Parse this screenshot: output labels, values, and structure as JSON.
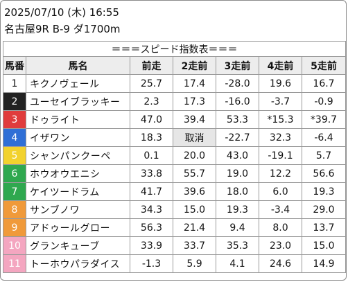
{
  "header": {
    "datetime": "2025/07/10 (木) 16:55",
    "race": "名古屋9R B-9 ダ1700m"
  },
  "table": {
    "title": "＝＝＝スピード指数表＝＝＝",
    "columns": [
      "馬番",
      "馬名",
      "前走",
      "2走前",
      "3走前",
      "4走前",
      "5走前"
    ],
    "rows": [
      {
        "num": "1",
        "name": "キクノヴェール",
        "r1": "25.7",
        "r2": "17.4",
        "r3": "-28.0",
        "r4": "19.6",
        "r5": "16.7",
        "bg": "#ffffff",
        "fg": "#111111"
      },
      {
        "num": "2",
        "name": "ユーセイブラッキー",
        "r1": "2.3",
        "r2": "17.3",
        "r3": "-16.0",
        "r4": "-3.7",
        "r5": "-0.9",
        "bg": "#222222",
        "fg": "#ffffff"
      },
      {
        "num": "3",
        "name": "ドゥライト",
        "r1": "47.0",
        "r2": "39.4",
        "r3": "53.3",
        "r4": "*15.3",
        "r5": "*39.7",
        "bg": "#e03c3c",
        "fg": "#ffffff"
      },
      {
        "num": "4",
        "name": "イザワン",
        "r1": "18.3",
        "r2": "取消",
        "r3": "-22.7",
        "r4": "32.3",
        "r5": "-6.4",
        "bg": "#2f6fd6",
        "fg": "#ffffff"
      },
      {
        "num": "5",
        "name": "シャンパンクーペ",
        "r1": "0.1",
        "r2": "20.0",
        "r3": "43.0",
        "r4": "-19.1",
        "r5": "5.7",
        "bg": "#f2d22e",
        "fg": "#ffffff"
      },
      {
        "num": "6",
        "name": "ホウオウエニシ",
        "r1": "33.8",
        "r2": "55.7",
        "r3": "19.0",
        "r4": "12.2",
        "r5": "56.6",
        "bg": "#2fa84f",
        "fg": "#ffffff"
      },
      {
        "num": "7",
        "name": "ケイツードラム",
        "r1": "41.7",
        "r2": "39.6",
        "r3": "18.0",
        "r4": "6.0",
        "r5": "19.3",
        "bg": "#2fa84f",
        "fg": "#ffffff"
      },
      {
        "num": "8",
        "name": "サンブノワ",
        "r1": "34.3",
        "r2": "15.0",
        "r3": "19.3",
        "r4": "-3.4",
        "r5": "29.0",
        "bg": "#f09a3a",
        "fg": "#ffffff"
      },
      {
        "num": "9",
        "name": "アドゥールグロー",
        "r1": "56.3",
        "r2": "21.4",
        "r3": "9.4",
        "r4": "8.0",
        "r5": "13.7",
        "bg": "#f09a3a",
        "fg": "#ffffff"
      },
      {
        "num": "10",
        "name": "グランキューブ",
        "r1": "33.9",
        "r2": "33.7",
        "r3": "35.3",
        "r4": "23.0",
        "r5": "15.0",
        "bg": "#f4a6c0",
        "fg": "#ffffff"
      },
      {
        "num": "11",
        "name": "トーホウパラダイス",
        "r1": "-1.3",
        "r2": "5.9",
        "r3": "4.1",
        "r4": "24.6",
        "r5": "14.9",
        "bg": "#f4a6c0",
        "fg": "#ffffff"
      }
    ]
  }
}
